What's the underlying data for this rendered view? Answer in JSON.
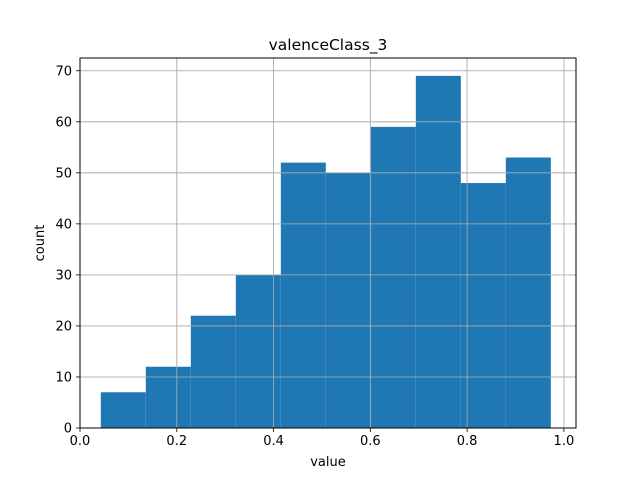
{
  "chart_data": {
    "type": "bar",
    "title": "valenceClass_3",
    "xlabel": "value",
    "ylabel": "count",
    "xlim": [
      0.0,
      1.025
    ],
    "ylim": [
      0,
      72.5
    ],
    "xticks": [
      0.0,
      0.2,
      0.4,
      0.6,
      0.8,
      1.0
    ],
    "xtick_labels": [
      "0.0",
      "0.2",
      "0.4",
      "0.6",
      "0.8",
      "1.0"
    ],
    "yticks": [
      0,
      10,
      20,
      30,
      40,
      50,
      60,
      70
    ],
    "ytick_labels": [
      "0",
      "10",
      "20",
      "30",
      "40",
      "50",
      "60",
      "70"
    ],
    "grid": true,
    "bin_edges": [
      0.043,
      0.136,
      0.229,
      0.322,
      0.415,
      0.508,
      0.601,
      0.694,
      0.787,
      0.88,
      0.973
    ],
    "values": [
      7,
      12,
      22,
      30,
      52,
      50,
      59,
      69,
      48,
      53
    ],
    "bar_color": "#1f77b4"
  }
}
